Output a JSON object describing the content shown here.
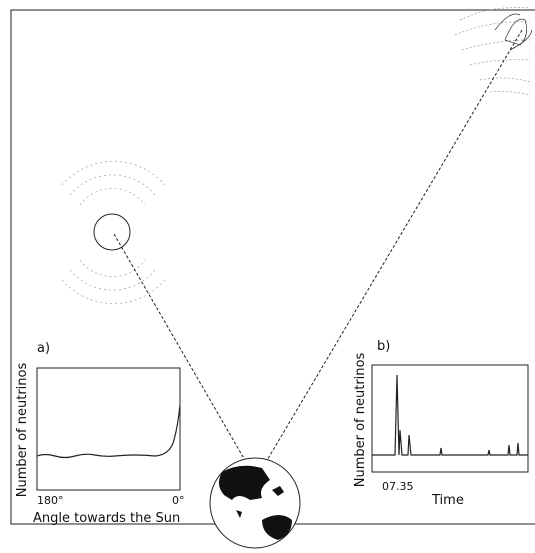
{
  "panel_a": {
    "label": "a)",
    "y_axis": "Number of neutrinos",
    "x_ticks": [
      "180°",
      "0°"
    ],
    "x_axis": "Angle towards the Sun"
  },
  "panel_b": {
    "label": "b)",
    "y_axis": "Number of neutrinos",
    "x_ticks": [
      "07.35"
    ],
    "x_axis": "Time"
  }
}
